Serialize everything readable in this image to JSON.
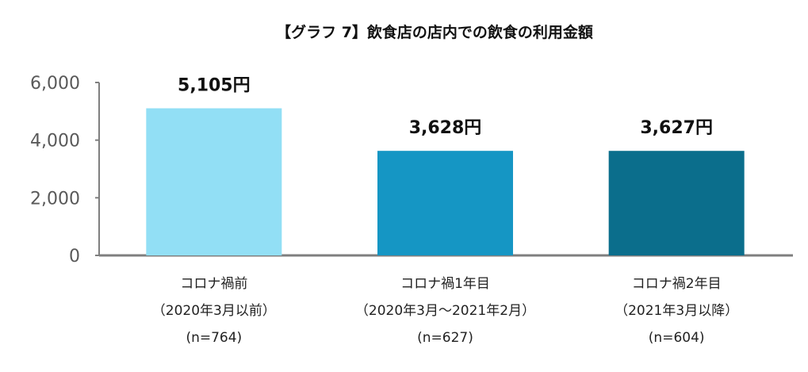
{
  "chart_data": {
    "type": "bar",
    "title": "【グラフ 7】飲食店の店内での飲食の利用金額",
    "categories": [
      [
        "コロナ禍前",
        "（2020年3月以前）",
        "(n=764)"
      ],
      [
        "コロナ禍1年目",
        "（2020年3月～2021年2月）",
        "(n=627)"
      ],
      [
        "コロナ禍2年目",
        "（2021年3月以降）",
        "(n=604)"
      ]
    ],
    "values": [
      5105,
      3628,
      3627
    ],
    "data_labels": [
      "5,105円",
      "3,628円",
      "3,627円"
    ],
    "colors": [
      "#92dff5",
      "#1596c4",
      "#0b6e8c"
    ],
    "ylim": [
      0,
      6000
    ],
    "yticks": [
      0,
      2000,
      4000,
      6000
    ],
    "ytick_labels": [
      "0",
      "2,000",
      "4,000",
      "6,000"
    ],
    "xlabel": "",
    "ylabel": "",
    "grid": false,
    "legend": "none"
  }
}
